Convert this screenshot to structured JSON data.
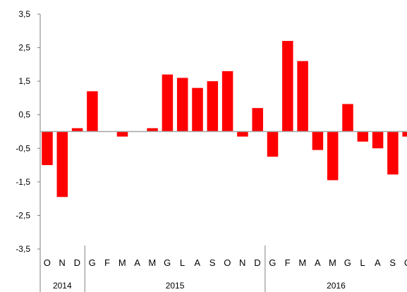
{
  "chart_data": {
    "type": "bar",
    "title": "",
    "xlabel": "",
    "ylabel": "",
    "ylim": [
      -3.5,
      3.5
    ],
    "yticks": [
      "3,5",
      "2,5",
      "1,5",
      "0,5",
      "-0,5",
      "-1,5",
      "-2,5",
      "-3,5"
    ],
    "ytick_values": [
      3.5,
      2.5,
      1.5,
      0.5,
      -0.5,
      -1.5,
      -2.5,
      -3.5
    ],
    "grid": false,
    "colors": {
      "bar": "#ff0000",
      "axis": "#7f7f7f",
      "zero_line": "#a6a6a6"
    },
    "categories": [
      "O",
      "N",
      "D",
      "G",
      "F",
      "M",
      "A",
      "M",
      "G",
      "L",
      "A",
      "S",
      "O",
      "N",
      "D",
      "G",
      "F",
      "M",
      "A",
      "M",
      "G",
      "L",
      "A",
      "S",
      "O"
    ],
    "values": [
      -1.0,
      -1.95,
      0.1,
      1.2,
      0.0,
      -0.15,
      0.0,
      0.1,
      1.7,
      1.6,
      1.3,
      1.5,
      1.8,
      -0.15,
      0.7,
      -0.75,
      2.7,
      2.1,
      -0.55,
      -1.45,
      0.82,
      -0.3,
      -0.5,
      -1.28,
      -0.15
    ],
    "year_groups": [
      {
        "label": "2014",
        "count": 3
      },
      {
        "label": "2015",
        "count": 12
      },
      {
        "label": "2016",
        "count": 10
      }
    ]
  }
}
